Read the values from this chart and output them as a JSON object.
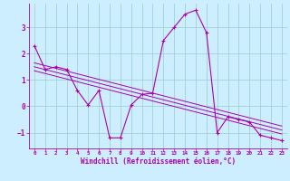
{
  "xlabel": "Windchill (Refroidissement éolien,°C)",
  "xlim": [
    -0.5,
    23.5
  ],
  "ylim": [
    -1.6,
    3.9
  ],
  "yticks": [
    -1,
    0,
    1,
    2,
    3
  ],
  "xticks": [
    0,
    1,
    2,
    3,
    4,
    5,
    6,
    7,
    8,
    9,
    10,
    11,
    12,
    13,
    14,
    15,
    16,
    17,
    18,
    19,
    20,
    21,
    22,
    23
  ],
  "bg_color": "#cceeff",
  "line_color": "#aa00aa",
  "grid_color": "#99cccc",
  "main_data_x": [
    0,
    1,
    2,
    3,
    4,
    5,
    6,
    7,
    8,
    9,
    10,
    11,
    12,
    13,
    14,
    15,
    16,
    17,
    18,
    19,
    20,
    21,
    22,
    23
  ],
  "main_data_y": [
    2.3,
    1.4,
    1.5,
    1.4,
    0.6,
    0.05,
    0.6,
    -1.2,
    -1.2,
    0.05,
    0.45,
    0.5,
    2.5,
    3.0,
    3.5,
    3.65,
    2.8,
    -1.0,
    -0.4,
    -0.5,
    -0.6,
    -1.1,
    -1.2,
    -1.3
  ],
  "reg_lines": [
    [
      [
        0,
        23
      ],
      [
        1.65,
        -0.75
      ]
    ],
    [
      [
        0,
        23
      ],
      [
        1.5,
        -0.9
      ]
    ],
    [
      [
        0,
        23
      ],
      [
        1.35,
        -1.05
      ]
    ]
  ]
}
